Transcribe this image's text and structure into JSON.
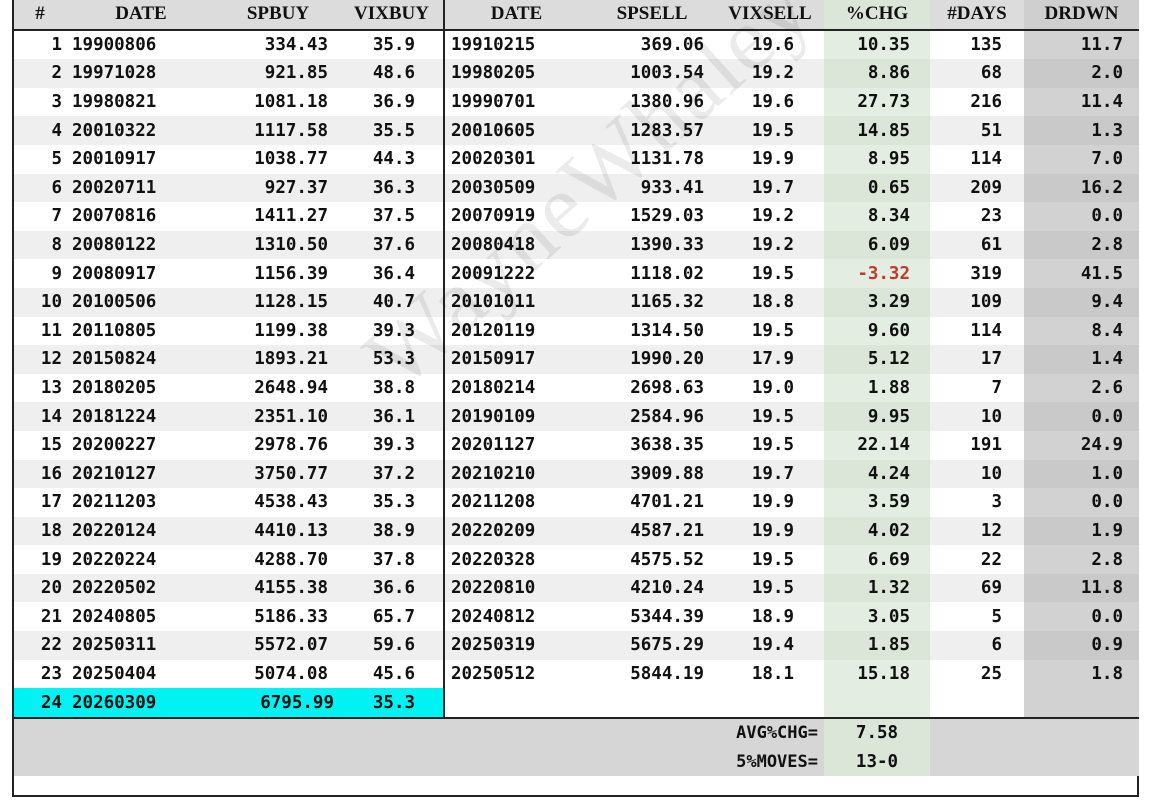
{
  "headers": {
    "idx": "#",
    "buy_date": "DATE",
    "spbuy": "SPBUY",
    "vixbuy": "VIXBUY",
    "sell_date": "DATE",
    "spsell": "SPSELL",
    "vixsell": "VIXSELL",
    "pchg": "%CHG",
    "days": "#DAYS",
    "drdwn": "DRDWN"
  },
  "rows": [
    {
      "idx": "1",
      "buy_date": "19900806",
      "spbuy": "334.43",
      "vixbuy": "35.9",
      "sell_date": "19910215",
      "spsell": "369.06",
      "vixsell": "19.6",
      "pchg": "10.35",
      "days": "135",
      "drdwn": "11.7"
    },
    {
      "idx": "2",
      "buy_date": "19971028",
      "spbuy": "921.85",
      "vixbuy": "48.6",
      "sell_date": "19980205",
      "spsell": "1003.54",
      "vixsell": "19.2",
      "pchg": "8.86",
      "days": "68",
      "drdwn": "2.0"
    },
    {
      "idx": "3",
      "buy_date": "19980821",
      "spbuy": "1081.18",
      "vixbuy": "36.9",
      "sell_date": "19990701",
      "spsell": "1380.96",
      "vixsell": "19.6",
      "pchg": "27.73",
      "days": "216",
      "drdwn": "11.4"
    },
    {
      "idx": "4",
      "buy_date": "20010322",
      "spbuy": "1117.58",
      "vixbuy": "35.5",
      "sell_date": "20010605",
      "spsell": "1283.57",
      "vixsell": "19.5",
      "pchg": "14.85",
      "days": "51",
      "drdwn": "1.3"
    },
    {
      "idx": "5",
      "buy_date": "20010917",
      "spbuy": "1038.77",
      "vixbuy": "44.3",
      "sell_date": "20020301",
      "spsell": "1131.78",
      "vixsell": "19.9",
      "pchg": "8.95",
      "days": "114",
      "drdwn": "7.0"
    },
    {
      "idx": "6",
      "buy_date": "20020711",
      "spbuy": "927.37",
      "vixbuy": "36.3",
      "sell_date": "20030509",
      "spsell": "933.41",
      "vixsell": "19.7",
      "pchg": "0.65",
      "days": "209",
      "drdwn": "16.2"
    },
    {
      "idx": "7",
      "buy_date": "20070816",
      "spbuy": "1411.27",
      "vixbuy": "37.5",
      "sell_date": "20070919",
      "spsell": "1529.03",
      "vixsell": "19.2",
      "pchg": "8.34",
      "days": "23",
      "drdwn": "0.0"
    },
    {
      "idx": "8",
      "buy_date": "20080122",
      "spbuy": "1310.50",
      "vixbuy": "37.6",
      "sell_date": "20080418",
      "spsell": "1390.33",
      "vixsell": "19.2",
      "pchg": "6.09",
      "days": "61",
      "drdwn": "2.8"
    },
    {
      "idx": "9",
      "buy_date": "20080917",
      "spbuy": "1156.39",
      "vixbuy": "36.4",
      "sell_date": "20091222",
      "spsell": "1118.02",
      "vixsell": "19.5",
      "pchg": "-3.32",
      "days": "319",
      "drdwn": "41.5"
    },
    {
      "idx": "10",
      "buy_date": "20100506",
      "spbuy": "1128.15",
      "vixbuy": "40.7",
      "sell_date": "20101011",
      "spsell": "1165.32",
      "vixsell": "18.8",
      "pchg": "3.29",
      "days": "109",
      "drdwn": "9.4"
    },
    {
      "idx": "11",
      "buy_date": "20110805",
      "spbuy": "1199.38",
      "vixbuy": "39.3",
      "sell_date": "20120119",
      "spsell": "1314.50",
      "vixsell": "19.5",
      "pchg": "9.60",
      "days": "114",
      "drdwn": "8.4"
    },
    {
      "idx": "12",
      "buy_date": "20150824",
      "spbuy": "1893.21",
      "vixbuy": "53.3",
      "sell_date": "20150917",
      "spsell": "1990.20",
      "vixsell": "17.9",
      "pchg": "5.12",
      "days": "17",
      "drdwn": "1.4"
    },
    {
      "idx": "13",
      "buy_date": "20180205",
      "spbuy": "2648.94",
      "vixbuy": "38.8",
      "sell_date": "20180214",
      "spsell": "2698.63",
      "vixsell": "19.0",
      "pchg": "1.88",
      "days": "7",
      "drdwn": "2.6"
    },
    {
      "idx": "14",
      "buy_date": "20181224",
      "spbuy": "2351.10",
      "vixbuy": "36.1",
      "sell_date": "20190109",
      "spsell": "2584.96",
      "vixsell": "19.5",
      "pchg": "9.95",
      "days": "10",
      "drdwn": "0.0"
    },
    {
      "idx": "15",
      "buy_date": "20200227",
      "spbuy": "2978.76",
      "vixbuy": "39.3",
      "sell_date": "20201127",
      "spsell": "3638.35",
      "vixsell": "19.5",
      "pchg": "22.14",
      "days": "191",
      "drdwn": "24.9"
    },
    {
      "idx": "16",
      "buy_date": "20210127",
      "spbuy": "3750.77",
      "vixbuy": "37.2",
      "sell_date": "20210210",
      "spsell": "3909.88",
      "vixsell": "19.7",
      "pchg": "4.24",
      "days": "10",
      "drdwn": "1.0"
    },
    {
      "idx": "17",
      "buy_date": "20211203",
      "spbuy": "4538.43",
      "vixbuy": "35.3",
      "sell_date": "20211208",
      "spsell": "4701.21",
      "vixsell": "19.9",
      "pchg": "3.59",
      "days": "3",
      "drdwn": "0.0"
    },
    {
      "idx": "18",
      "buy_date": "20220124",
      "spbuy": "4410.13",
      "vixbuy": "38.9",
      "sell_date": "20220209",
      "spsell": "4587.21",
      "vixsell": "19.9",
      "pchg": "4.02",
      "days": "12",
      "drdwn": "1.9"
    },
    {
      "idx": "19",
      "buy_date": "20220224",
      "spbuy": "4288.70",
      "vixbuy": "37.8",
      "sell_date": "20220328",
      "spsell": "4575.52",
      "vixsell": "19.5",
      "pchg": "6.69",
      "days": "22",
      "drdwn": "2.8"
    },
    {
      "idx": "20",
      "buy_date": "20220502",
      "spbuy": "4155.38",
      "vixbuy": "36.6",
      "sell_date": "20220810",
      "spsell": "4210.24",
      "vixsell": "19.5",
      "pchg": "1.32",
      "days": "69",
      "drdwn": "11.8"
    },
    {
      "idx": "21",
      "buy_date": "20240805",
      "spbuy": "5186.33",
      "vixbuy": "65.7",
      "sell_date": "20240812",
      "spsell": "5344.39",
      "vixsell": "18.9",
      "pchg": "3.05",
      "days": "5",
      "drdwn": "0.0"
    },
    {
      "idx": "22",
      "buy_date": "20250311",
      "spbuy": "5572.07",
      "vixbuy": "59.6",
      "sell_date": "20250319",
      "spsell": "5675.29",
      "vixsell": "19.4",
      "pchg": "1.85",
      "days": "6",
      "drdwn": "0.9"
    },
    {
      "idx": "23",
      "buy_date": "20250404",
      "spbuy": "5074.08",
      "vixbuy": "45.6",
      "sell_date": "20250512",
      "spsell": "5844.19",
      "vixsell": "18.1",
      "pchg": "15.18",
      "days": "25",
      "drdwn": "1.8"
    }
  ],
  "open_position": {
    "idx": "24",
    "buy_date": "20260309",
    "spbuy": "6795.99",
    "vixbuy": "35.3"
  },
  "summary": {
    "avg_label": "AVG%CHG=",
    "avg_value": "7.58",
    "moves_label": "5%MOVES=",
    "moves_value": "13-0"
  },
  "watermark": "WayneWhaley",
  "colors": {
    "highlight": "#00f2f2",
    "negative": "#c0392b",
    "chg_column": "#e3ede1",
    "drdwn_column": "#d2d2d2"
  }
}
